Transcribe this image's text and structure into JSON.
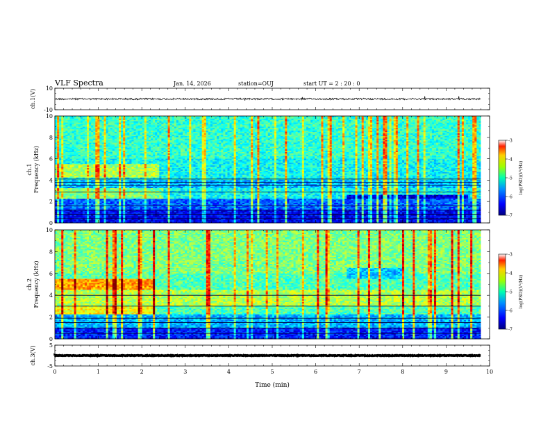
{
  "header": {
    "title": "VLF Spectra",
    "date": "Jan. 14, 2026",
    "station": "station=OUJ",
    "start_ut": "start UT =   2 : 20 : 0"
  },
  "colors": {
    "low": "#00007f",
    "mid_low": "#0060ff",
    "mid": "#00ffa0",
    "mid_high": "#ffff00",
    "high": "#ff0000",
    "top": "#7f0000"
  },
  "chart_data": [
    {
      "type": "line",
      "panel": "ch1-waveform",
      "ylabel": "ch.1(V)",
      "ylim": [
        -10,
        10
      ],
      "yticks": [
        {
          "value": 10,
          "label": "10"
        },
        {
          "value": -10,
          "label": "-10"
        }
      ],
      "xlim": [
        0,
        10
      ],
      "trace_level": 0.0,
      "trace_noise_amplitude": 0.8,
      "trace_end_min": 9.8
    },
    {
      "type": "heatmap",
      "panel": "ch1-spectrogram",
      "ylabel": "Frequency (kHz)",
      "channel_label": "ch.1",
      "ylim": [
        0,
        10
      ],
      "yticks": [
        {
          "value": 0,
          "label": "0"
        },
        {
          "value": 2,
          "label": "2"
        },
        {
          "value": 4,
          "label": "4"
        },
        {
          "value": 6,
          "label": "6"
        },
        {
          "value": 8,
          "label": "8"
        },
        {
          "value": 10,
          "label": "10"
        }
      ],
      "xlim": [
        0,
        10
      ],
      "data_end_min": 9.8,
      "color_scale": {
        "label": "log(PSD)(V²/Hz)",
        "range": [
          -7,
          -3
        ],
        "ticks": [
          {
            "value": -3,
            "label": "-3"
          },
          {
            "value": -4,
            "label": "-4"
          },
          {
            "value": -5,
            "label": "-5"
          },
          {
            "value": -6,
            "label": "-6"
          },
          {
            "value": -7,
            "label": "-7"
          }
        ]
      }
    },
    {
      "type": "heatmap",
      "panel": "ch2-spectrogram",
      "ylabel": "Frequency (kHz)",
      "channel_label": "ch.2",
      "ylim": [
        0,
        10
      ],
      "yticks": [
        {
          "value": 0,
          "label": "0"
        },
        {
          "value": 2,
          "label": "2"
        },
        {
          "value": 4,
          "label": "4"
        },
        {
          "value": 6,
          "label": "6"
        },
        {
          "value": 8,
          "label": "8"
        },
        {
          "value": 10,
          "label": "10"
        }
      ],
      "xlim": [
        0,
        10
      ],
      "data_end_min": 9.8,
      "color_scale": {
        "label": "log(PSD)(V²/Hz)",
        "range": [
          -7,
          -3
        ],
        "ticks": [
          {
            "value": -3,
            "label": "-3"
          },
          {
            "value": -4,
            "label": "-4"
          },
          {
            "value": -5,
            "label": "-5"
          },
          {
            "value": -6,
            "label": "-6"
          },
          {
            "value": -7,
            "label": "-7"
          }
        ]
      }
    },
    {
      "type": "line",
      "panel": "ch3-waveform",
      "ylabel": "ch.3(V)",
      "ylim": [
        -5,
        5
      ],
      "yticks": [
        {
          "value": 5,
          "label": "5"
        },
        {
          "value": -5,
          "label": "-5"
        }
      ],
      "xlim": [
        0,
        10
      ],
      "trace_level": 0.0,
      "trace_noise_amplitude": 0.15,
      "trace_end_min": 9.8,
      "xlabel": "Time (min)",
      "xticks": [
        {
          "value": 0,
          "label": "0"
        },
        {
          "value": 1,
          "label": "1"
        },
        {
          "value": 2,
          "label": "2"
        },
        {
          "value": 3,
          "label": "3"
        },
        {
          "value": 4,
          "label": "4"
        },
        {
          "value": 5,
          "label": "5"
        },
        {
          "value": 6,
          "label": "6"
        },
        {
          "value": 7,
          "label": "7"
        },
        {
          "value": 8,
          "label": "8"
        },
        {
          "value": 9,
          "label": "9"
        },
        {
          "value": 10,
          "label": "10"
        }
      ]
    }
  ]
}
